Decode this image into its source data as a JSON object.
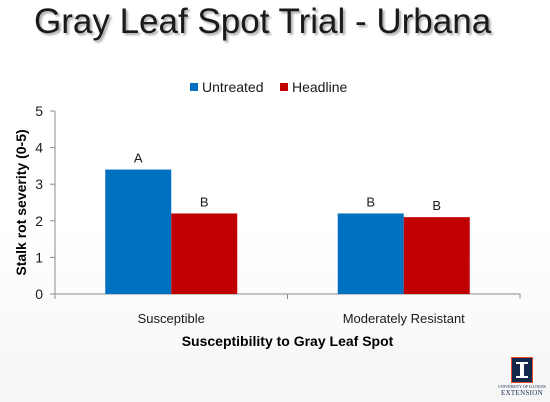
{
  "slide": {
    "title": "Gray Leaf Spot Trial - Urbana"
  },
  "logo": {
    "small_text": "UNIVERSITY OF ILLINOIS",
    "word": "EXTENSION"
  },
  "chart_data": {
    "type": "bar",
    "categories": [
      "Susceptible",
      "Moderately Resistant"
    ],
    "series": [
      {
        "name": "Untreated",
        "color": "#0070c0",
        "values": [
          3.4,
          2.2
        ],
        "labels": [
          "A",
          "B"
        ]
      },
      {
        "name": "Headline",
        "color": "#c00000",
        "values": [
          2.2,
          2.1
        ],
        "labels": [
          "B",
          "B"
        ]
      }
    ],
    "xlabel": "Susceptibility to Gray Leaf Spot",
    "ylabel": "Stalk rot severity (0-5)",
    "ylim": [
      0,
      5
    ],
    "yticks": [
      0,
      1,
      2,
      3,
      4,
      5
    ],
    "grid": false,
    "legend": "top"
  }
}
